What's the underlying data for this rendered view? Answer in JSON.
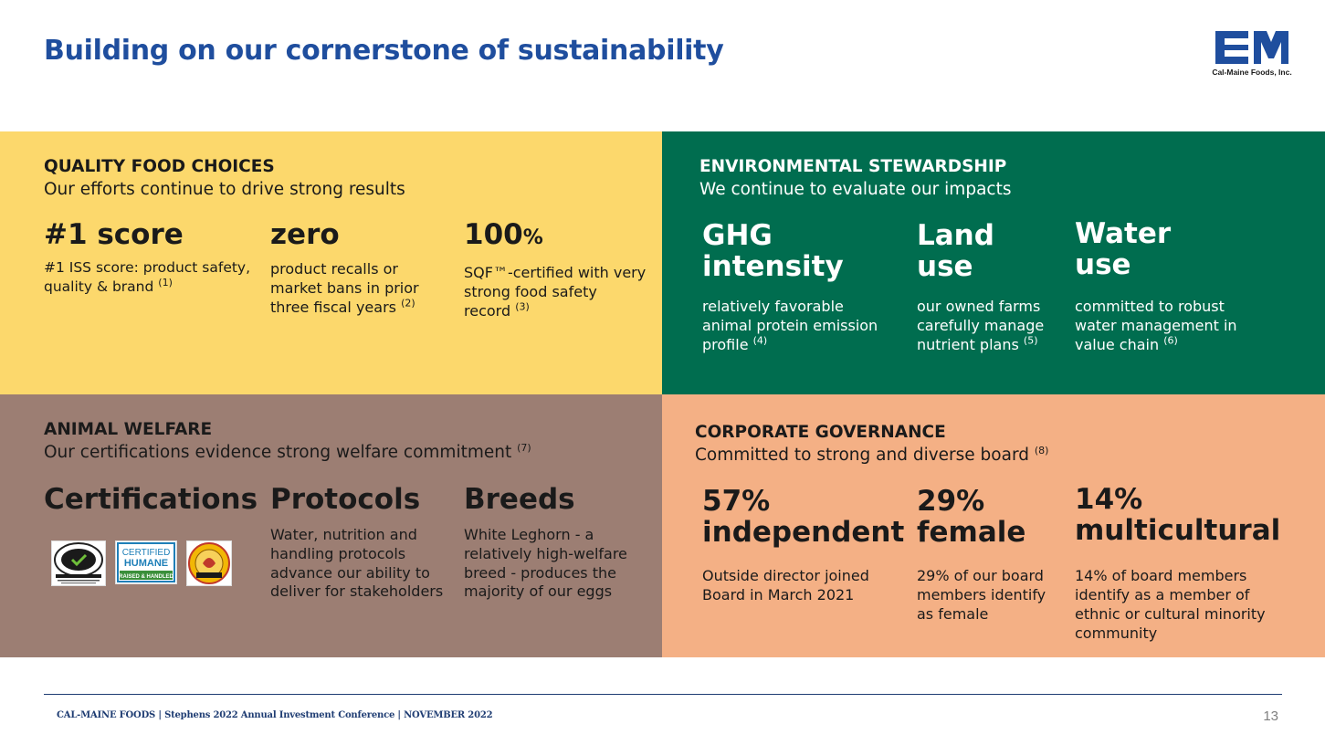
{
  "header": {
    "title": "Building on our cornerstone of sustainability",
    "logo_caption": "Cal-Maine Foods, Inc."
  },
  "colors": {
    "title": "#1f4e9e",
    "quality": "#fcd86c",
    "environment": "#006d4f",
    "animal": "#9c7e73",
    "governance": "#f4b085",
    "logo": "#1f4e9e"
  },
  "quality": {
    "heading": "QUALITY FOOD CHOICES",
    "subheading": "Our efforts continue to drive strong results",
    "items": [
      {
        "big": "#1 score",
        "desc": "#1  ISS score: product safety, quality & brand",
        "note": "(1)"
      },
      {
        "big": "zero",
        "desc": "product recalls or market bans in prior three fiscal years",
        "note": "(2)"
      },
      {
        "big": "100",
        "big_unit": "%",
        "desc": "SQF™-certified with very strong food safety record",
        "note": "(3)"
      }
    ]
  },
  "environment": {
    "heading": "ENVIRONMENTAL STEWARDSHIP",
    "subheading": "We continue to evaluate our impacts",
    "items": [
      {
        "big": "GHG\nintensity",
        "desc": "relatively favorable animal protein emission profile",
        "note": "(4)"
      },
      {
        "big": "Land\nuse",
        "desc": "our owned farms carefully manage nutrient plans",
        "note": "(5)"
      },
      {
        "big": "Water\nuse",
        "desc": "committed to robust water management in value chain",
        "note": "(6)"
      }
    ]
  },
  "animal": {
    "heading": "ANIMAL WELFARE",
    "subheading": "Our certifications evidence strong welfare commitment",
    "subnote": "(7)",
    "items": [
      {
        "big": "Certifications"
      },
      {
        "big": "Protocols",
        "desc": "Water, nutrition and handling protocols advance our ability to deliver for stakeholders"
      },
      {
        "big": "Breeds",
        "desc": "White Leghorn - a relatively high-welfare breed - produces the majority of our eggs"
      }
    ],
    "certifications": [
      {
        "icon": "united-egg-producers-certified-seal",
        "label": "UNITED EGG PRODUCERS CERTIFIED"
      },
      {
        "icon": "certified-humane-seal",
        "line1": "CERTIFIED",
        "line2": "HUMANE",
        "line3": "RAISED & HANDLED"
      },
      {
        "icon": "american-humane-certified-seal",
        "label": "American Humane CERTIFIED"
      }
    ]
  },
  "governance": {
    "heading": "CORPORATE GOVERNANCE",
    "subheading": "Committed to strong and diverse board",
    "subnote": "(8)",
    "items": [
      {
        "big": "57%\nindependent",
        "desc": "Outside director joined Board in March 2021"
      },
      {
        "big": "29%\nfemale",
        "desc": "29% of our board members identify as female"
      },
      {
        "big": "14%\nmulticultural",
        "desc": "14% of board members identify as a member of ethnic or cultural minority community"
      }
    ]
  },
  "footer": {
    "text": "CAL-MAINE FOODS | Stephens 2022 Annual Investment Conference | NOVEMBER 2022",
    "page_number": "13"
  }
}
